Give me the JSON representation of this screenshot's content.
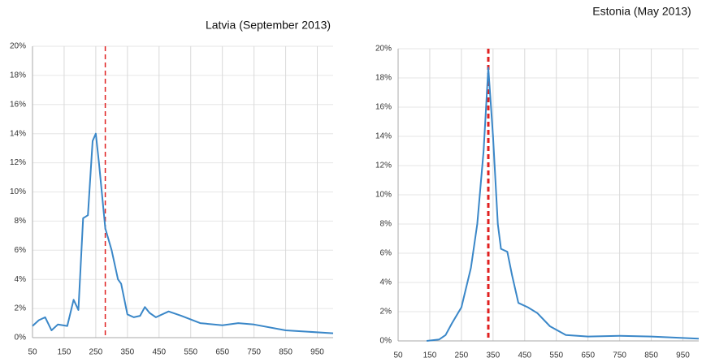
{
  "chart_data": [
    {
      "type": "line",
      "title": "Latvia (September 2013)",
      "x": [
        50,
        70,
        90,
        110,
        130,
        160,
        180,
        195,
        210,
        225,
        240,
        250,
        260,
        280,
        300,
        320,
        330,
        350,
        370,
        390,
        405,
        420,
        440,
        480,
        520,
        580,
        650,
        700,
        750,
        850,
        1000
      ],
      "values": [
        0.8,
        1.2,
        1.4,
        0.5,
        0.9,
        0.8,
        2.6,
        1.9,
        8.2,
        8.4,
        13.5,
        14,
        12,
        7.5,
        6,
        4,
        3.7,
        1.6,
        1.4,
        1.5,
        2.1,
        1.7,
        1.4,
        1.8,
        1.5,
        1.0,
        0.85,
        1.0,
        0.9,
        0.5,
        0.3
      ],
      "color": "#3a87c8",
      "reference_x": 280,
      "reference_color": "#e02020",
      "xlim": [
        50,
        1000
      ],
      "xticks": [
        50,
        150,
        250,
        350,
        450,
        550,
        650,
        750,
        850,
        950
      ],
      "ylim": [
        0,
        20
      ],
      "yticks": [
        {
          "value": 0,
          "label": "0%"
        },
        {
          "value": 2,
          "label": "2%"
        },
        {
          "value": 4,
          "label": "4%"
        },
        {
          "value": 6,
          "label": "6%"
        },
        {
          "value": 8,
          "label": "8%"
        },
        {
          "value": 10,
          "label": "10%"
        },
        {
          "value": 12,
          "label": "12%"
        },
        {
          "value": 14,
          "label": "14%"
        },
        {
          "value": 16,
          "label": "16%"
        },
        {
          "value": 18,
          "label": "18%"
        },
        {
          "value": 20,
          "label": "20%"
        }
      ],
      "grid": true
    },
    {
      "type": "line",
      "title": "Estonia (May 2013)",
      "x": [
        140,
        180,
        200,
        220,
        250,
        280,
        300,
        320,
        335,
        350,
        365,
        375,
        395,
        410,
        430,
        460,
        490,
        530,
        580,
        650,
        750,
        850,
        1000
      ],
      "values": [
        0,
        0.1,
        0.4,
        1.2,
        2.3,
        5,
        8,
        13,
        18.7,
        14,
        8,
        6.3,
        6.1,
        4.5,
        2.6,
        2.3,
        1.9,
        1.0,
        0.4,
        0.3,
        0.35,
        0.3,
        0.15
      ],
      "color": "#3a87c8",
      "reference_x": 335,
      "reference_color": "#e02020",
      "xlim": [
        50,
        1000
      ],
      "xticks": [
        50,
        150,
        250,
        350,
        450,
        550,
        650,
        750,
        850,
        950
      ],
      "ylim": [
        0,
        20
      ],
      "yticks": [
        {
          "value": 0,
          "label": "0%"
        },
        {
          "value": 2,
          "label": "2%"
        },
        {
          "value": 4,
          "label": "4%"
        },
        {
          "value": 6,
          "label": "6%"
        },
        {
          "value": 8,
          "label": "8%"
        },
        {
          "value": 10,
          "label": "10%"
        },
        {
          "value": 12,
          "label": "12%"
        },
        {
          "value": 14,
          "label": "14%"
        },
        {
          "value": 16,
          "label": "16%"
        },
        {
          "value": 18,
          "label": "18%"
        },
        {
          "value": 20,
          "label": "20%"
        }
      ],
      "grid": true
    }
  ]
}
